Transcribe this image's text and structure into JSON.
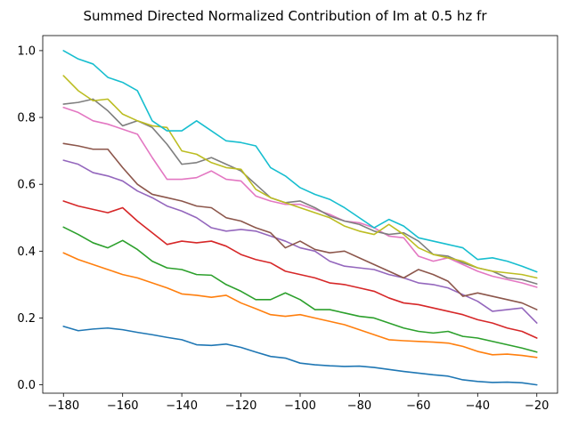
{
  "chart_data": {
    "type": "line",
    "title": "Summed Directed Normalized Contribution of Im at 0.5 hz fr",
    "xlabel": "",
    "ylabel": "",
    "xlim": [
      -187,
      -13
    ],
    "ylim": [
      -0.025,
      1.045
    ],
    "xticks": [
      -180,
      -160,
      -140,
      -120,
      -100,
      -80,
      -60,
      -40,
      -20
    ],
    "yticks": [
      0.0,
      0.2,
      0.4,
      0.6,
      0.8,
      1.0
    ],
    "xtick_labels": [
      "−180",
      "−160",
      "−140",
      "−120",
      "−100",
      "−80",
      "−60",
      "−40",
      "−20"
    ],
    "ytick_labels": [
      "0.0",
      "0.2",
      "0.4",
      "0.6",
      "0.8",
      "1.0"
    ],
    "grid": false,
    "x": [
      -180,
      -175,
      -170,
      -165,
      -160,
      -155,
      -150,
      -145,
      -140,
      -135,
      -130,
      -125,
      -120,
      -115,
      -110,
      -105,
      -100,
      -95,
      -90,
      -85,
      -80,
      -75,
      -70,
      -65,
      -60,
      -55,
      -50,
      -45,
      -40,
      -35,
      -30,
      -25,
      -20
    ],
    "series": [
      {
        "color": "#1f77b4",
        "values": [
          0.175,
          0.162,
          0.167,
          0.17,
          0.165,
          0.157,
          0.15,
          0.142,
          0.135,
          0.12,
          0.118,
          0.122,
          0.112,
          0.098,
          0.085,
          0.08,
          0.065,
          0.06,
          0.057,
          0.055,
          0.056,
          0.052,
          0.046,
          0.04,
          0.035,
          0.03,
          0.026,
          0.015,
          0.01,
          0.007,
          0.008,
          0.006,
          0.0
        ]
      },
      {
        "color": "#ff7f0e",
        "values": [
          0.395,
          0.375,
          0.36,
          0.345,
          0.33,
          0.32,
          0.305,
          0.29,
          0.272,
          0.268,
          0.262,
          0.268,
          0.245,
          0.228,
          0.21,
          0.205,
          0.21,
          0.2,
          0.19,
          0.18,
          0.165,
          0.15,
          0.135,
          0.132,
          0.13,
          0.128,
          0.125,
          0.115,
          0.1,
          0.09,
          0.092,
          0.088,
          0.082
        ]
      },
      {
        "color": "#2ca02c",
        "values": [
          0.472,
          0.45,
          0.425,
          0.41,
          0.432,
          0.405,
          0.37,
          0.35,
          0.345,
          0.33,
          0.328,
          0.3,
          0.28,
          0.255,
          0.255,
          0.275,
          0.255,
          0.225,
          0.225,
          0.215,
          0.205,
          0.2,
          0.185,
          0.17,
          0.16,
          0.155,
          0.16,
          0.145,
          0.14,
          0.13,
          0.12,
          0.11,
          0.098
        ]
      },
      {
        "color": "#d62728",
        "values": [
          0.55,
          0.535,
          0.525,
          0.515,
          0.53,
          0.49,
          0.455,
          0.42,
          0.43,
          0.425,
          0.43,
          0.415,
          0.39,
          0.375,
          0.365,
          0.34,
          0.33,
          0.32,
          0.305,
          0.3,
          0.29,
          0.28,
          0.26,
          0.245,
          0.24,
          0.23,
          0.22,
          0.21,
          0.195,
          0.185,
          0.17,
          0.16,
          0.14
        ]
      },
      {
        "color": "#9467bd",
        "values": [
          0.672,
          0.66,
          0.635,
          0.625,
          0.61,
          0.58,
          0.56,
          0.535,
          0.52,
          0.5,
          0.47,
          0.46,
          0.465,
          0.46,
          0.445,
          0.43,
          0.41,
          0.4,
          0.37,
          0.355,
          0.35,
          0.345,
          0.33,
          0.32,
          0.305,
          0.3,
          0.29,
          0.27,
          0.25,
          0.22,
          0.225,
          0.23,
          0.185
        ]
      },
      {
        "color": "#8c564b",
        "values": [
          0.722,
          0.715,
          0.705,
          0.705,
          0.65,
          0.6,
          0.57,
          0.56,
          0.55,
          0.535,
          0.53,
          0.5,
          0.49,
          0.47,
          0.455,
          0.41,
          0.43,
          0.405,
          0.395,
          0.4,
          0.38,
          0.36,
          0.34,
          0.32,
          0.345,
          0.33,
          0.31,
          0.265,
          0.275,
          0.265,
          0.255,
          0.245,
          0.225
        ]
      },
      {
        "color": "#e377c2",
        "values": [
          0.83,
          0.815,
          0.79,
          0.78,
          0.765,
          0.75,
          0.68,
          0.615,
          0.615,
          0.62,
          0.64,
          0.615,
          0.61,
          0.565,
          0.55,
          0.54,
          0.54,
          0.525,
          0.51,
          0.49,
          0.485,
          0.47,
          0.445,
          0.44,
          0.385,
          0.37,
          0.38,
          0.36,
          0.34,
          0.325,
          0.315,
          0.305,
          0.292
        ]
      },
      {
        "color": "#7f7f7f",
        "values": [
          0.84,
          0.845,
          0.855,
          0.82,
          0.775,
          0.79,
          0.77,
          0.72,
          0.66,
          0.665,
          0.68,
          0.66,
          0.64,
          0.6,
          0.56,
          0.545,
          0.55,
          0.53,
          0.505,
          0.49,
          0.48,
          0.46,
          0.45,
          0.455,
          0.43,
          0.39,
          0.385,
          0.365,
          0.35,
          0.34,
          0.32,
          0.315,
          0.302
        ]
      },
      {
        "color": "#bcbd22",
        "values": [
          0.925,
          0.88,
          0.85,
          0.855,
          0.81,
          0.79,
          0.775,
          0.77,
          0.7,
          0.69,
          0.665,
          0.65,
          0.645,
          0.585,
          0.56,
          0.545,
          0.53,
          0.515,
          0.5,
          0.475,
          0.46,
          0.45,
          0.48,
          0.45,
          0.41,
          0.39,
          0.38,
          0.37,
          0.35,
          0.34,
          0.335,
          0.33,
          0.32
        ]
      },
      {
        "color": "#17becf",
        "values": [
          1.0,
          0.975,
          0.96,
          0.92,
          0.905,
          0.88,
          0.79,
          0.76,
          0.76,
          0.79,
          0.76,
          0.73,
          0.725,
          0.715,
          0.65,
          0.625,
          0.59,
          0.57,
          0.555,
          0.53,
          0.5,
          0.47,
          0.495,
          0.475,
          0.44,
          0.43,
          0.42,
          0.41,
          0.375,
          0.38,
          0.37,
          0.355,
          0.338
        ]
      }
    ]
  }
}
